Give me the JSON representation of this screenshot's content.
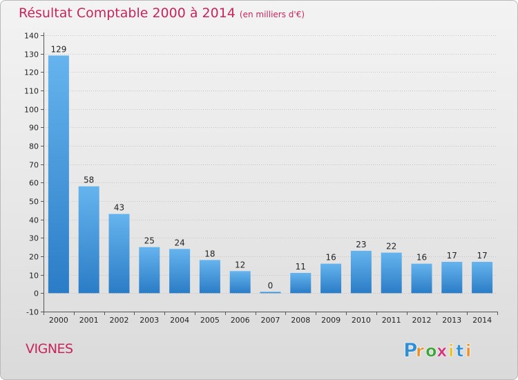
{
  "header": {
    "title": "Résultat Comptable 2000 à 2014",
    "unit": "(en milliers d'€)"
  },
  "footer": {
    "town": "VIGNES"
  },
  "logo": {
    "letters": [
      "P",
      "r",
      "o",
      "x",
      "i",
      "t",
      "i"
    ],
    "colors": [
      "#2f8fd6",
      "#e8902a",
      "#3aa535",
      "#d3357a",
      "#e8c227",
      "#2f8fd6",
      "#e8902a"
    ]
  },
  "chart_data": {
    "type": "bar",
    "categories": [
      "2000",
      "2001",
      "2002",
      "2003",
      "2004",
      "2005",
      "2006",
      "2007",
      "2008",
      "2009",
      "2010",
      "2011",
      "2012",
      "2013",
      "2014"
    ],
    "values": [
      129,
      58,
      43,
      25,
      24,
      18,
      12,
      0,
      11,
      16,
      23,
      22,
      16,
      17,
      17
    ],
    "ylim": [
      -10,
      140
    ],
    "yticks": [
      -10,
      0,
      10,
      20,
      30,
      40,
      50,
      60,
      70,
      80,
      90,
      100,
      110,
      120,
      130,
      140
    ],
    "grid": true,
    "bar_color": "#3f90d8"
  }
}
